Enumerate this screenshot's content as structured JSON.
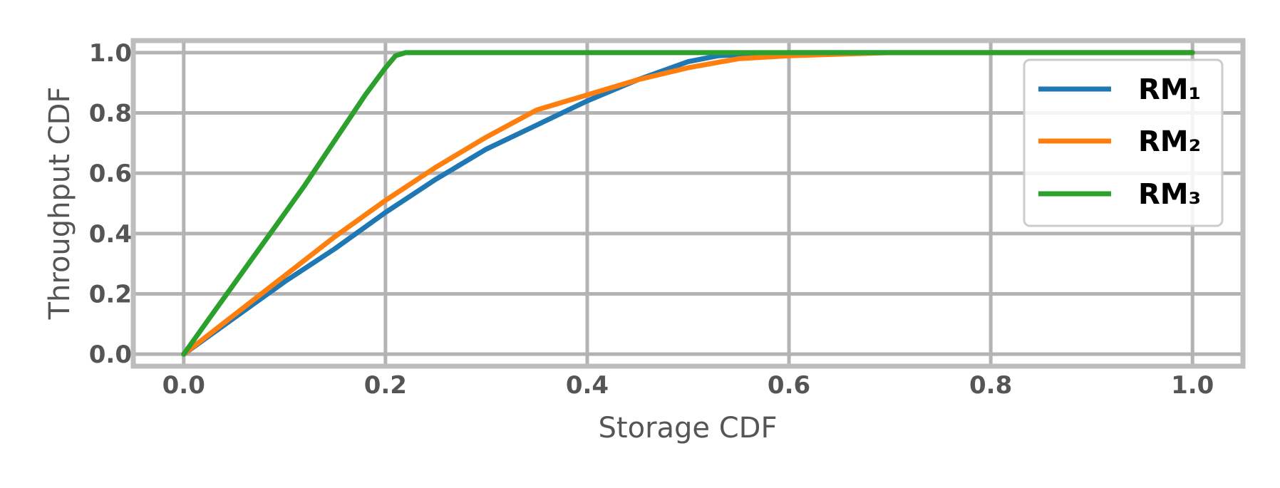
{
  "chart_data": {
    "type": "line",
    "title": "",
    "xlabel": "Storage CDF",
    "ylabel": "Throughput CDF",
    "xlim": [
      -0.05,
      1.05
    ],
    "ylim": [
      -0.04,
      1.04
    ],
    "xticks": [
      0.0,
      0.2,
      0.4,
      0.6,
      0.8,
      1.0
    ],
    "yticks": [
      0.0,
      0.2,
      0.4,
      0.6,
      0.8,
      1.0
    ],
    "xtick_labels": [
      "0.0",
      "0.2",
      "0.4",
      "0.6",
      "0.8",
      "1.0"
    ],
    "ytick_labels": [
      "0.0",
      "0.2",
      "0.4",
      "0.6",
      "0.8",
      "1.0"
    ],
    "grid": true,
    "legend_position": "top-right",
    "series": [
      {
        "name": "RM₁",
        "color": "#1f77b4",
        "x": [
          0.0,
          0.05,
          0.1,
          0.15,
          0.2,
          0.25,
          0.3,
          0.35,
          0.4,
          0.45,
          0.5,
          0.53,
          0.6,
          0.7,
          0.8,
          0.9,
          1.0
        ],
        "y": [
          0.0,
          0.12,
          0.24,
          0.35,
          0.47,
          0.58,
          0.68,
          0.76,
          0.84,
          0.91,
          0.97,
          0.99,
          1.0,
          1.0,
          1.0,
          1.0,
          1.0
        ]
      },
      {
        "name": "RM₂",
        "color": "#ff7f0e",
        "x": [
          0.0,
          0.05,
          0.1,
          0.15,
          0.2,
          0.25,
          0.3,
          0.35,
          0.4,
          0.45,
          0.5,
          0.55,
          0.6,
          0.7,
          0.8,
          0.9,
          1.0
        ],
        "y": [
          0.0,
          0.13,
          0.26,
          0.39,
          0.51,
          0.62,
          0.72,
          0.81,
          0.86,
          0.91,
          0.95,
          0.98,
          0.99,
          1.0,
          1.0,
          1.0,
          1.0
        ]
      },
      {
        "name": "RM₃",
        "color": "#2ca02c",
        "x": [
          0.0,
          0.03,
          0.06,
          0.09,
          0.12,
          0.15,
          0.18,
          0.2,
          0.21,
          0.22,
          0.3,
          0.4,
          0.6,
          0.8,
          1.0
        ],
        "y": [
          0.0,
          0.14,
          0.28,
          0.42,
          0.56,
          0.71,
          0.86,
          0.95,
          0.99,
          1.0,
          1.0,
          1.0,
          1.0,
          1.0,
          1.0
        ]
      }
    ]
  }
}
